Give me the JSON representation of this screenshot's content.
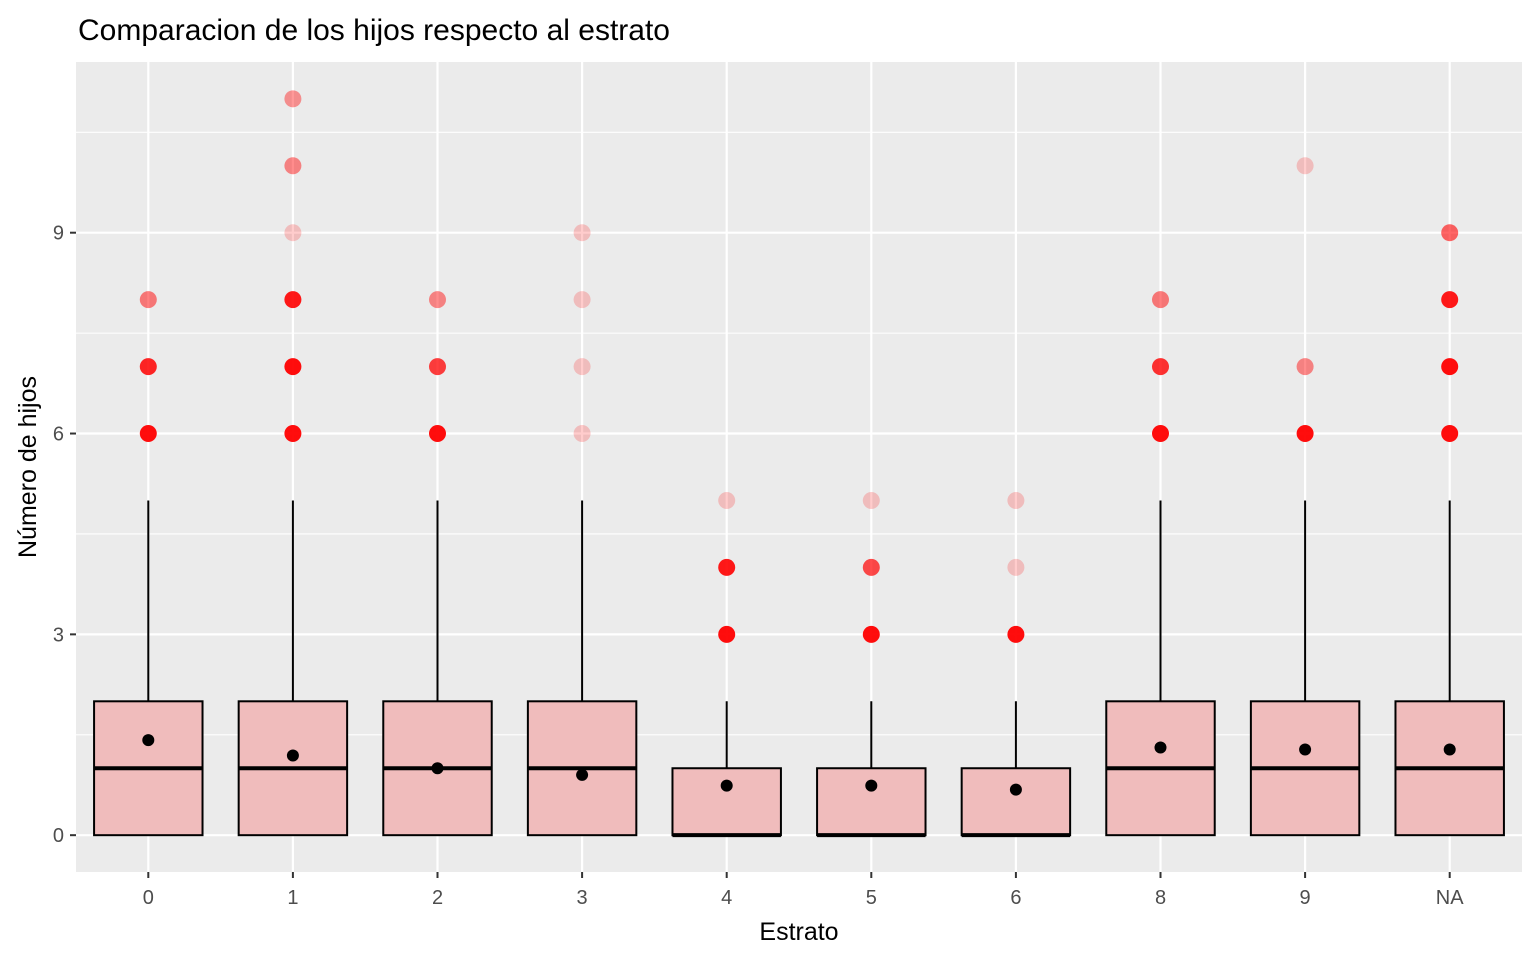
{
  "chart_data": {
    "type": "boxplot",
    "title": "Comparacion de los hijos respecto al estrato",
    "xlabel": "Estrato",
    "ylabel": "Número de hijos",
    "ylim": [
      -0.55,
      11.55
    ],
    "y_ticks": [
      0,
      3,
      6,
      9
    ],
    "y_tick_labels": [
      "0",
      "3",
      "6",
      "9"
    ],
    "y_minor_ticks": [
      1.5,
      4.5,
      7.5,
      10.5
    ],
    "grid": true,
    "legend": "none",
    "colors": {
      "panel": "#ebebeb",
      "grid": "#ffffff",
      "box_fill": "#f0bcbc",
      "box_stroke": "#000000",
      "outlier": "#ff0000",
      "mean_point": "#000000"
    },
    "categories": [
      "0",
      "1",
      "2",
      "3",
      "4",
      "5",
      "6",
      "8",
      "9",
      "NA"
    ],
    "boxes": [
      {
        "q1": 0,
        "median": 1,
        "q3": 2,
        "whisker_low": 0,
        "whisker_high": 5,
        "mean": 1.42,
        "outliers": [
          {
            "y": 6,
            "alpha": 0.95
          },
          {
            "y": 7,
            "alpha": 0.85
          },
          {
            "y": 8,
            "alpha": 0.5
          }
        ]
      },
      {
        "q1": 0,
        "median": 1,
        "q3": 2,
        "whisker_low": 0,
        "whisker_high": 5,
        "mean": 1.19,
        "outliers": [
          {
            "y": 6,
            "alpha": 0.95
          },
          {
            "y": 7,
            "alpha": 0.95
          },
          {
            "y": 8,
            "alpha": 0.9
          },
          {
            "y": 9,
            "alpha": 0.2
          },
          {
            "y": 10,
            "alpha": 0.45
          },
          {
            "y": 11,
            "alpha": 0.4
          }
        ]
      },
      {
        "q1": 0,
        "median": 1,
        "q3": 2,
        "whisker_low": 0,
        "whisker_high": 5,
        "mean": 1.0,
        "outliers": [
          {
            "y": 6,
            "alpha": 0.95
          },
          {
            "y": 7,
            "alpha": 0.75
          },
          {
            "y": 8,
            "alpha": 0.45
          }
        ]
      },
      {
        "q1": 0,
        "median": 1,
        "q3": 2,
        "whisker_low": 0,
        "whisker_high": 5,
        "mean": 0.9,
        "outliers": [
          {
            "y": 6,
            "alpha": 0.2
          },
          {
            "y": 7,
            "alpha": 0.2
          },
          {
            "y": 8,
            "alpha": 0.2
          },
          {
            "y": 9,
            "alpha": 0.2
          }
        ]
      },
      {
        "q1": 0,
        "median": 0,
        "q3": 1,
        "whisker_low": 0,
        "whisker_high": 2,
        "mean": 0.74,
        "outliers": [
          {
            "y": 3,
            "alpha": 0.95
          },
          {
            "y": 4,
            "alpha": 0.9
          },
          {
            "y": 5,
            "alpha": 0.2
          }
        ]
      },
      {
        "q1": 0,
        "median": 0,
        "q3": 1,
        "whisker_low": 0,
        "whisker_high": 2,
        "mean": 0.74,
        "outliers": [
          {
            "y": 3,
            "alpha": 0.95
          },
          {
            "y": 4,
            "alpha": 0.7
          },
          {
            "y": 5,
            "alpha": 0.2
          }
        ]
      },
      {
        "q1": 0,
        "median": 0,
        "q3": 1,
        "whisker_low": 0,
        "whisker_high": 2,
        "mean": 0.68,
        "outliers": [
          {
            "y": 3,
            "alpha": 0.95
          },
          {
            "y": 4,
            "alpha": 0.2
          },
          {
            "y": 5,
            "alpha": 0.2
          }
        ]
      },
      {
        "q1": 0,
        "median": 1,
        "q3": 2,
        "whisker_low": 0,
        "whisker_high": 5,
        "mean": 1.31,
        "outliers": [
          {
            "y": 6,
            "alpha": 0.95
          },
          {
            "y": 7,
            "alpha": 0.8
          },
          {
            "y": 8,
            "alpha": 0.5
          }
        ]
      },
      {
        "q1": 0,
        "median": 1,
        "q3": 2,
        "whisker_low": 0,
        "whisker_high": 5,
        "mean": 1.28,
        "outliers": [
          {
            "y": 6,
            "alpha": 0.95
          },
          {
            "y": 7,
            "alpha": 0.45
          },
          {
            "y": 10,
            "alpha": 0.2
          }
        ]
      },
      {
        "q1": 0,
        "median": 1,
        "q3": 2,
        "whisker_low": 0,
        "whisker_high": 5,
        "mean": 1.28,
        "outliers": [
          {
            "y": 6,
            "alpha": 0.95
          },
          {
            "y": 7,
            "alpha": 0.95
          },
          {
            "y": 8,
            "alpha": 0.9
          },
          {
            "y": 9,
            "alpha": 0.6
          }
        ]
      }
    ]
  }
}
